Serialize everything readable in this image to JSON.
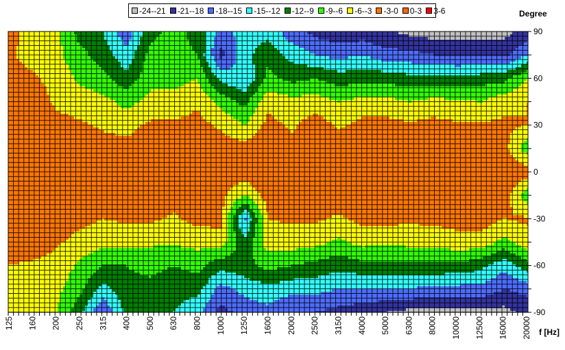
{
  "chart_data": {
    "type": "heatmap",
    "subtype": "filled-contour",
    "xlabel": "f [Hz]",
    "ylabel": "Degree",
    "x": [
      "125",
      "160",
      "200",
      "250",
      "315",
      "400",
      "500",
      "630",
      "800",
      "1000",
      "1250",
      "1600",
      "2000",
      "2500",
      "3150",
      "4000",
      "5000",
      "6300",
      "8000",
      "10000",
      "12500",
      "16000",
      "20000"
    ],
    "y": [
      90,
      75,
      60,
      45,
      30,
      15,
      0,
      -15,
      -30,
      -45,
      -60,
      -75,
      -90
    ],
    "y_ticks": [
      "90",
      "60",
      "30",
      "0",
      "-30",
      "-60",
      "-90"
    ],
    "ylim": [
      -90,
      90
    ],
    "grid": true,
    "legend_position": "top",
    "levels": [
      {
        "label": "-24--21",
        "min": -24,
        "max": -21,
        "color": "#C0C0C0"
      },
      {
        "label": "-21--18",
        "min": -21,
        "max": -18,
        "color": "#3333A0"
      },
      {
        "label": "-18--15",
        "min": -18,
        "max": -15,
        "color": "#4D6CFF"
      },
      {
        "label": "-15--12",
        "min": -15,
        "max": -12,
        "color": "#33FFFF"
      },
      {
        "label": "-12--9",
        "min": -12,
        "max": -9,
        "color": "#008000"
      },
      {
        "label": "-9--6",
        "min": -9,
        "max": -6,
        "color": "#33FF00"
      },
      {
        "label": "-6--3",
        "min": -6,
        "max": -3,
        "color": "#FFFF00"
      },
      {
        "label": "-3-0",
        "min": -3,
        "max": 0,
        "color": "#FF7700"
      },
      {
        "label": "0-3",
        "min": 0,
        "max": 3,
        "color": "#FF6600"
      },
      {
        "label": "3-6",
        "min": 3,
        "max": 6,
        "color": "#FF0000"
      }
    ],
    "values_by_frequency": [
      [
        -2,
        -2.5,
        -2,
        -1.5,
        -1,
        -1,
        -1,
        -1,
        -1,
        -1.5,
        -3,
        -4,
        -5
      ],
      [
        -4,
        -4,
        -2.5,
        -1,
        -1,
        -1,
        -1,
        -1,
        -1,
        -1,
        -3.5,
        -4.5,
        -5
      ],
      [
        -5,
        -5,
        -4,
        -3.5,
        -2,
        -1,
        -1,
        -1,
        -1,
        -2.5,
        -4,
        -5,
        -5.5
      ],
      [
        -10,
        -8,
        -6.5,
        -4.5,
        -2.5,
        -1,
        -1,
        -1,
        -2,
        -4,
        -6.5,
        -8,
        -11
      ],
      [
        -12,
        -10.5,
        -8,
        -5,
        -3.5,
        -1.5,
        -1.5,
        -1.5,
        -3,
        -5,
        -9,
        -13,
        -18
      ],
      [
        -17,
        -14,
        -11,
        -7,
        -4,
        -2,
        -1.5,
        -1.5,
        -2.5,
        -5,
        -9,
        -10,
        -11
      ],
      [
        -10,
        -8,
        -7,
        -5,
        -2.5,
        -1,
        -1,
        -1,
        -2.5,
        -5.5,
        -8,
        -10,
        -11
      ],
      [
        -8,
        -8,
        -7,
        -5,
        -2.5,
        -1,
        -1,
        -1.5,
        -3.5,
        -5.5,
        -9,
        -11,
        -12
      ],
      [
        -10,
        -9,
        -6,
        -3.5,
        -2,
        -1,
        -1,
        -0.5,
        -2,
        -5,
        -8,
        -11,
        -14
      ],
      [
        -16,
        -19,
        -13,
        -7,
        -3.5,
        -1.5,
        -1,
        -2,
        -2,
        -4.5,
        -11,
        -16,
        -19
      ],
      [
        -14,
        -13,
        -15,
        -10,
        -6,
        -1.5,
        -1,
        -6,
        -16,
        -11,
        -10,
        -14,
        -17
      ],
      [
        -13,
        -10,
        -8,
        -4,
        -2,
        -1,
        -1,
        -1.5,
        -3,
        -4.5,
        -8,
        -13,
        -16
      ],
      [
        -17,
        -13,
        -10,
        -5,
        -3.5,
        -2,
        -1,
        -1,
        -2.5,
        -4.5,
        -9,
        -14,
        -18
      ],
      [
        -19,
        -15,
        -9,
        -4.5,
        -1.5,
        -0.5,
        -0.5,
        -1,
        -2.5,
        -5,
        -10,
        -14,
        -18
      ],
      [
        -20,
        -16,
        -10.5,
        -6,
        -3.5,
        -1,
        -0.5,
        -1,
        -3.5,
        -6.5,
        -11,
        -15,
        -19
      ],
      [
        -20,
        -15,
        -10,
        -5,
        -2,
        -1,
        -1,
        -1,
        -2,
        -5,
        -10,
        -15,
        -20
      ],
      [
        -20.5,
        -17,
        -10,
        -5,
        -2,
        -1,
        -0.5,
        -1,
        -2,
        -5.5,
        -10,
        -15,
        -21
      ],
      [
        -22,
        -17,
        -11,
        -6,
        -2.5,
        -1,
        -0.2,
        -1,
        -2.5,
        -5,
        -10,
        -15,
        -22
      ],
      [
        -22.5,
        -18,
        -11,
        -5,
        -2,
        -1,
        -1,
        -1,
        -2,
        -5,
        -9.5,
        -16,
        -22
      ],
      [
        -22.5,
        -18.5,
        -11,
        -5.5,
        -2.5,
        -1.5,
        -0.5,
        -1,
        -2,
        -4,
        -10,
        -16,
        -22
      ],
      [
        -22.5,
        -18.5,
        -10.5,
        -6,
        -2.5,
        -1,
        -0.5,
        -0.5,
        -1.5,
        -4,
        -11,
        -16,
        -22
      ],
      [
        -22,
        -19,
        -10,
        -4,
        -2.5,
        -2,
        -1,
        -1,
        -3,
        -7,
        -14,
        -18,
        -22
      ],
      [
        -20,
        -15,
        -6,
        -3,
        -3,
        -8,
        -1,
        -8,
        -2.5,
        -4,
        -10,
        -17,
        -20
      ]
    ]
  }
}
